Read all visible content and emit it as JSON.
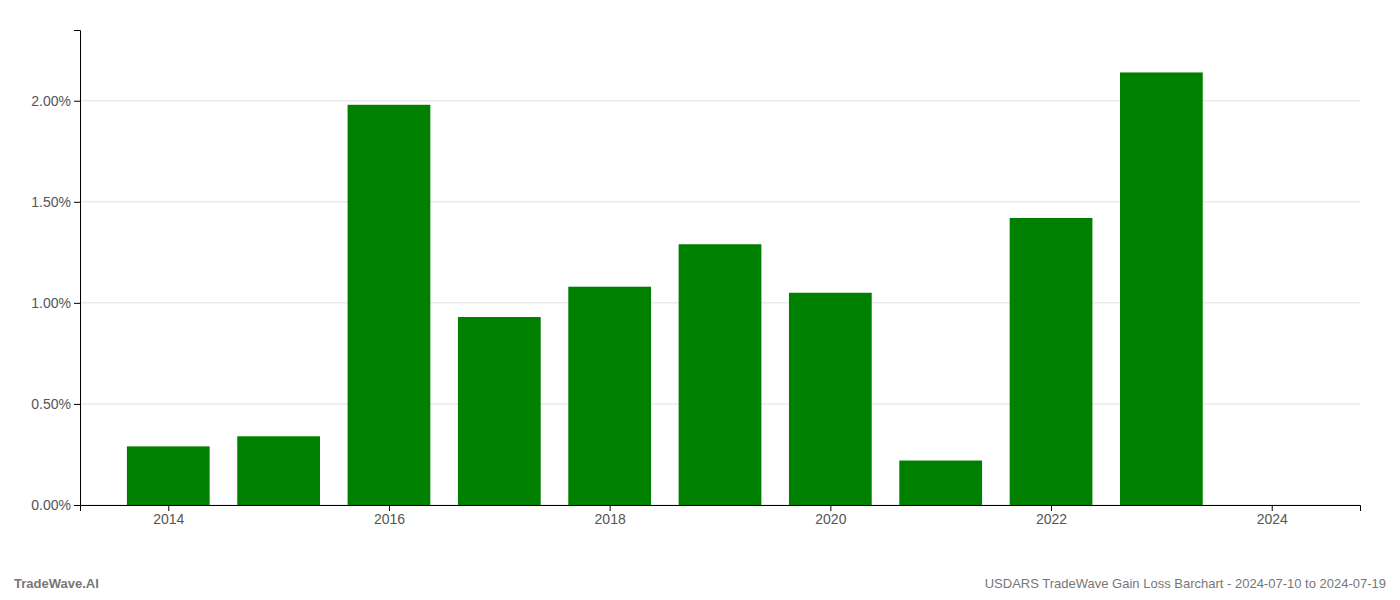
{
  "chart_data": {
    "type": "bar",
    "x": [
      2014,
      2015,
      2016,
      2017,
      2018,
      2019,
      2020,
      2021,
      2022,
      2023
    ],
    "values": [
      0.0029,
      0.0034,
      0.0198,
      0.0093,
      0.0108,
      0.0129,
      0.0105,
      0.0022,
      0.0142,
      0.0214
    ],
    "color": "#008000",
    "xlim": [
      2013.2,
      2024.8
    ],
    "xticks": [
      2014,
      2016,
      2018,
      2020,
      2022,
      2024
    ],
    "ylim": [
      0,
      0.0235
    ],
    "yticks": [
      {
        "value": 0.0,
        "label": "0.00%"
      },
      {
        "value": 0.005,
        "label": "0.50%"
      },
      {
        "value": 0.01,
        "label": "1.00%"
      },
      {
        "value": 0.015,
        "label": "1.50%"
      },
      {
        "value": 0.02,
        "label": "2.00%"
      }
    ],
    "grid": true,
    "annotations": [
      "TradeWave.AI",
      "USDARS TradeWave Gain Loss Barchart - 2024-07-10 to 2024-07-19"
    ]
  }
}
